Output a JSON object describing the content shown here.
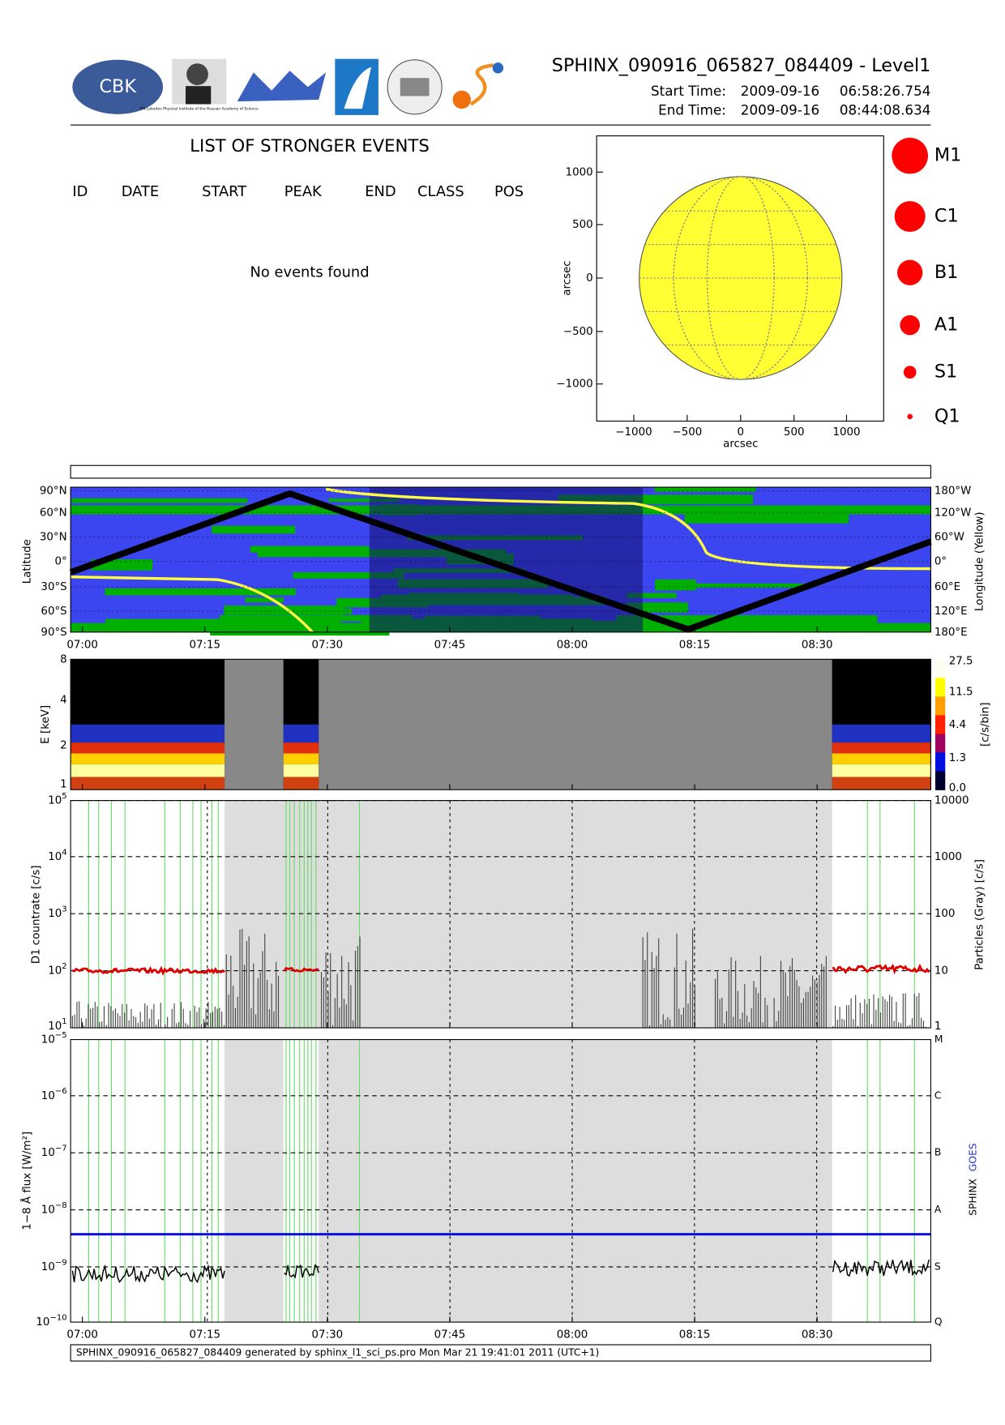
{
  "header": {
    "title": "SPHINX_090916_065827_084409 - Level1",
    "start_label": "Start Time:",
    "start_date": "2009-09-16",
    "start_time": "06:58:26.754",
    "end_label": "End Time:",
    "end_date": "2009-09-16",
    "end_time": "08:44:08.634",
    "logo_text": "CBK",
    "logo_caption": "P.N.Lebedev Physical Institute of the Russian Academy of Science"
  },
  "events": {
    "title": "LIST OF STRONGER EVENTS",
    "columns": [
      "ID",
      "DATE",
      "START",
      "PEAK",
      "END",
      "CLASS",
      "POS"
    ],
    "message": "No events found"
  },
  "sun_map": {
    "xticks": [
      "−1000",
      "−500",
      "0",
      "500",
      "1000"
    ],
    "yticks": [
      "1000",
      "500",
      "0",
      "−500",
      "−1000"
    ],
    "xlabel": "arcsec",
    "ylabel": "arcsec"
  },
  "classes_legend": [
    "M1",
    "C1",
    "B1",
    "A1",
    "S1",
    "Q1"
  ],
  "time_ticks": [
    "07:00",
    "07:15",
    "07:30",
    "07:45",
    "08:00",
    "08:15",
    "08:30"
  ],
  "orbit": {
    "ylabel": "Latitude",
    "y2label": "Longitude (Yellow)",
    "lat_ticks": [
      "90°N",
      "60°N",
      "30°N",
      "0°",
      "30°S",
      "60°S",
      "90°S"
    ],
    "lon_ticks": [
      "180°W",
      "120°W",
      "60°W",
      "0°",
      "60°E",
      "120°E",
      "180°E"
    ]
  },
  "spectrogram": {
    "ylabel": "E [keV]",
    "yticks": [
      "8",
      "4",
      "2",
      "1"
    ],
    "colorbar_ticks": [
      "27.5",
      "11.5",
      "4.4",
      "1.3",
      "0.0"
    ],
    "colorbar_label": "[c/s/bin]"
  },
  "countrate": {
    "ylabel": "D1 countrate [c/s]",
    "yticks": [
      {
        "base": "10",
        "exp": "5"
      },
      {
        "base": "10",
        "exp": "4"
      },
      {
        "base": "10",
        "exp": "3"
      },
      {
        "base": "10",
        "exp": "2"
      },
      {
        "base": "10",
        "exp": "1"
      }
    ],
    "y2label": "Particles (Gray) [c/s]",
    "y2ticks": [
      "10000",
      "1000",
      "100",
      "10",
      "1"
    ]
  },
  "flux": {
    "ylabel": "1−8 Å flux [W/m²]",
    "yticks": [
      {
        "base": "10",
        "exp": "−5"
      },
      {
        "base": "10",
        "exp": "−6"
      },
      {
        "base": "10",
        "exp": "−7"
      },
      {
        "base": "10",
        "exp": "−8"
      },
      {
        "base": "10",
        "exp": "−9"
      },
      {
        "base": "10",
        "exp": "−10"
      }
    ],
    "classes": [
      "M",
      "C",
      "B",
      "A",
      "S",
      "Q"
    ],
    "legend": [
      "SPHINX",
      "GOES"
    ]
  },
  "footer": "SPHINX_090916_065827_084409 generated by sphinx_l1_sci_ps.pro Mon Mar 21 19:41:01 2011 (UTC+1)"
}
